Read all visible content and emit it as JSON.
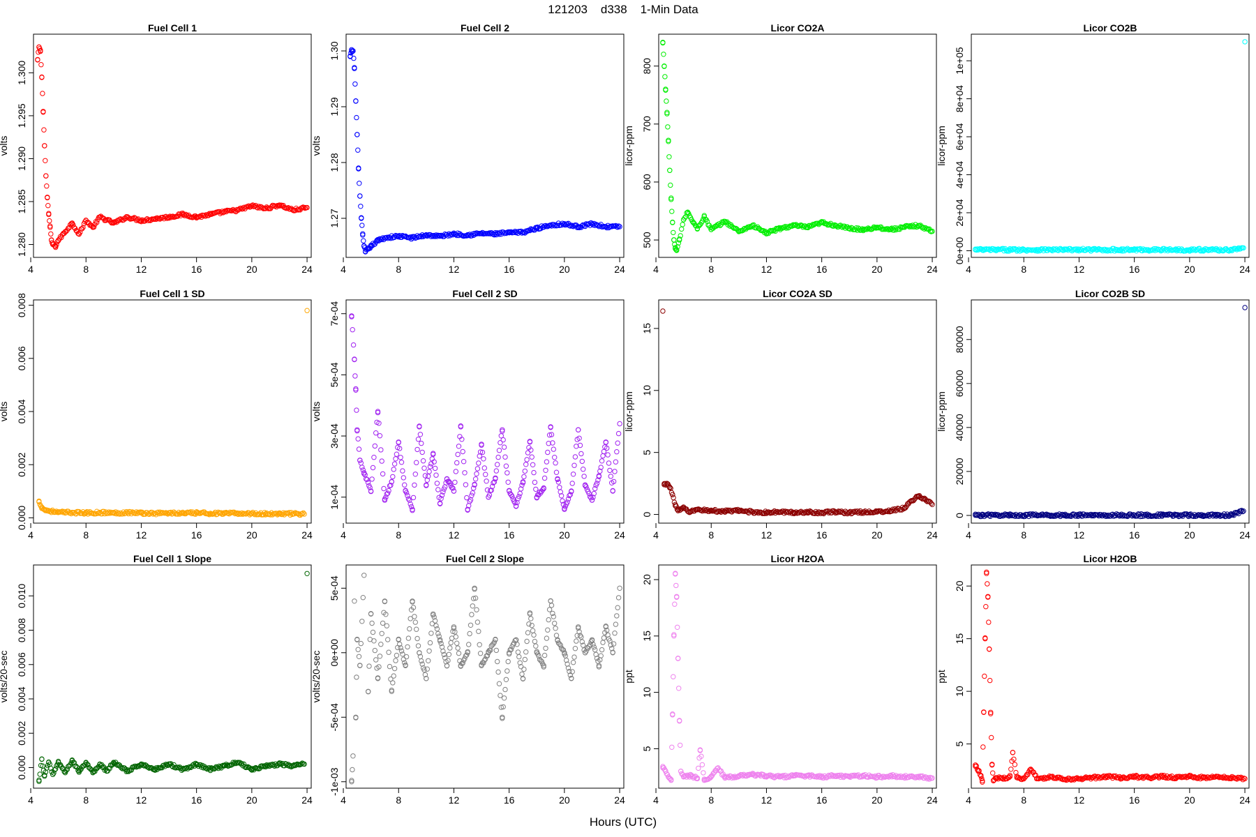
{
  "page": {
    "title": "121203    d338    1-Min Data",
    "xlabel": "Hours (UTC)"
  },
  "chart_data": [
    {
      "type": "scatter",
      "title": "Fuel Cell 1",
      "ylabel": "volts",
      "color": "#ff0000",
      "xlim": [
        4.2,
        24.3
      ],
      "ylim": [
        1.2785,
        1.3045
      ],
      "xticks": [
        4,
        8,
        12,
        16,
        20,
        24
      ],
      "yticks": [
        1.28,
        1.285,
        1.29,
        1.295,
        1.3
      ],
      "ytick_labels": [
        "1.280",
        "1.285",
        "1.290",
        "1.295",
        "1.300"
      ],
      "x": [
        4.5,
        4.6,
        4.7,
        4.8,
        4.9,
        5.0,
        5.1,
        5.2,
        5.3,
        5.4,
        5.5,
        5.6,
        5.8,
        6.0,
        6.5,
        7.0,
        7.5,
        8.0,
        8.5,
        9.0,
        10.0,
        11.0,
        12.0,
        13.0,
        14.0,
        15.0,
        16.0,
        17.0,
        18.0,
        19.0,
        20.0,
        21.0,
        22.0,
        23.0,
        24.0
      ],
      "y": [
        1.3015,
        1.303,
        1.3025,
        1.2995,
        1.2955,
        1.2915,
        1.288,
        1.2855,
        1.2835,
        1.282,
        1.2805,
        1.28,
        1.2798,
        1.2805,
        1.2815,
        1.2825,
        1.2812,
        1.2828,
        1.282,
        1.2832,
        1.2825,
        1.2832,
        1.2828,
        1.283,
        1.2832,
        1.2835,
        1.2832,
        1.2835,
        1.2838,
        1.284,
        1.2845,
        1.2842,
        1.2846,
        1.284,
        1.2843
      ]
    },
    {
      "type": "scatter",
      "title": "Fuel Cell 2",
      "ylabel": "volts",
      "color": "#0000ff",
      "xlim": [
        4.2,
        24.3
      ],
      "ylim": [
        1.263,
        1.303
      ],
      "xticks": [
        4,
        8,
        12,
        16,
        20,
        24
      ],
      "yticks": [
        1.27,
        1.28,
        1.29,
        1.3
      ],
      "ytick_labels": [
        "1.27",
        "1.28",
        "1.29",
        "1.30"
      ],
      "x": [
        4.5,
        4.6,
        4.7,
        4.8,
        4.9,
        5.0,
        5.1,
        5.2,
        5.3,
        5.4,
        5.5,
        5.6,
        5.8,
        6.0,
        6.5,
        7.0,
        8.0,
        9.0,
        10.0,
        11.0,
        12.0,
        13.0,
        14.0,
        15.0,
        16.0,
        17.0,
        18.0,
        19.0,
        20.0,
        21.0,
        22.0,
        23.0,
        24.0
      ],
      "y": [
        1.299,
        1.3,
        1.3,
        1.297,
        1.291,
        1.285,
        1.279,
        1.274,
        1.27,
        1.267,
        1.265,
        1.264,
        1.2645,
        1.265,
        1.266,
        1.2665,
        1.2668,
        1.2665,
        1.267,
        1.2668,
        1.2672,
        1.267,
        1.2673,
        1.2672,
        1.2674,
        1.2675,
        1.2682,
        1.2688,
        1.269,
        1.2685,
        1.269,
        1.2685,
        1.2685
      ]
    },
    {
      "type": "scatter",
      "title": "Licor CO2A",
      "ylabel": "licor-ppm",
      "color": "#00ee00",
      "xlim": [
        4.2,
        24.3
      ],
      "ylim": [
        470,
        855
      ],
      "xticks": [
        4,
        8,
        12,
        16,
        20,
        24
      ],
      "yticks": [
        500,
        600,
        700,
        800
      ],
      "ytick_labels": [
        "500",
        "600",
        "700",
        "800"
      ],
      "x": [
        4.5,
        4.6,
        4.7,
        4.8,
        4.9,
        5.0,
        5.1,
        5.2,
        5.3,
        5.4,
        5.5,
        5.7,
        6.0,
        6.3,
        6.7,
        7.0,
        7.5,
        8.0,
        9.0,
        10.0,
        11.0,
        12.0,
        13.0,
        14.0,
        15.0,
        16.0,
        17.0,
        18.0,
        19.0,
        20.0,
        21.0,
        22.0,
        23.0,
        24.0
      ],
      "y": [
        840,
        800,
        760,
        720,
        670,
        620,
        570,
        530,
        500,
        485,
        482,
        500,
        535,
        548,
        530,
        520,
        540,
        518,
        532,
        515,
        525,
        512,
        520,
        525,
        522,
        530,
        525,
        520,
        518,
        522,
        518,
        522,
        525,
        515
      ]
    },
    {
      "type": "scatter",
      "title": "Licor CO2B",
      "ylabel": "licor-ppm",
      "color": "#00ffff",
      "xlim": [
        4.2,
        24.3
      ],
      "ylim": [
        -3500,
        114000
      ],
      "xticks": [
        4,
        8,
        12,
        16,
        20,
        24
      ],
      "yticks": [
        0,
        20000,
        40000,
        60000,
        80000,
        100000
      ],
      "ytick_labels": [
        "0e+00",
        "2e+04",
        "4e+04",
        "6e+04",
        "8e+04",
        "1e+05"
      ],
      "x": [
        4.5,
        5,
        6,
        7,
        8,
        9,
        10,
        11,
        12,
        13,
        14,
        15,
        16,
        17,
        18,
        19,
        20,
        21,
        22,
        23,
        23.9,
        24.0
      ],
      "y": [
        500,
        500,
        500,
        500,
        500,
        500,
        500,
        500,
        500,
        500,
        500,
        500,
        500,
        500,
        500,
        500,
        500,
        500,
        500,
        500,
        1500,
        110000
      ]
    },
    {
      "type": "scatter",
      "title": "Fuel Cell 1 SD",
      "ylabel": "volts",
      "color": "#ffa500",
      "xlim": [
        4.2,
        24.3
      ],
      "ylim": [
        -0.0002,
        0.0082
      ],
      "xticks": [
        4,
        8,
        12,
        16,
        20,
        24
      ],
      "yticks": [
        0.0,
        0.002,
        0.004,
        0.006,
        0.008
      ],
      "ytick_labels": [
        "0.000",
        "0.002",
        "0.004",
        "0.006",
        "0.008"
      ],
      "x": [
        4.6,
        4.8,
        5.0,
        5.5,
        6,
        7,
        8,
        9,
        10,
        11,
        12,
        13,
        14,
        15,
        16,
        17,
        18,
        19,
        20,
        21,
        22,
        23,
        23.8,
        24.0
      ],
      "y": [
        0.0006,
        0.0004,
        0.0003,
        0.00025,
        0.0002,
        0.0002,
        0.00018,
        0.0002,
        0.00018,
        0.0002,
        0.00018,
        0.00017,
        0.00018,
        0.00017,
        0.00018,
        0.00017,
        0.00016,
        0.00017,
        0.00016,
        0.00015,
        0.00016,
        0.00015,
        0.00014,
        0.0078
      ]
    },
    {
      "type": "scatter",
      "title": "Fuel Cell 2 SD",
      "ylabel": "volts",
      "color": "#a020f0",
      "xlim": [
        4.2,
        24.3
      ],
      "ylim": [
        1.5e-05,
        0.000745
      ],
      "xticks": [
        4,
        8,
        12,
        16,
        20,
        24
      ],
      "yticks": [
        0.0001,
        0.0003,
        0.0005,
        0.0007
      ],
      "ytick_labels": [
        "1e-04",
        "3e-04",
        "5e-04",
        "7e-04"
      ],
      "x": [
        4.6,
        4.8,
        4.9,
        5.0,
        5.2,
        5.5,
        6.0,
        6.5,
        7.0,
        7.5,
        8.0,
        8.5,
        9.0,
        9.5,
        10.0,
        10.5,
        11.0,
        11.5,
        12.0,
        12.5,
        13.0,
        13.5,
        14.0,
        14.5,
        15.0,
        15.5,
        16.0,
        16.5,
        17.0,
        17.5,
        18.0,
        18.5,
        19.0,
        19.5,
        20.0,
        20.5,
        21.0,
        21.5,
        22.0,
        22.5,
        23.0,
        23.5,
        24.0
      ],
      "y": [
        0.00069,
        0.00055,
        0.00045,
        0.00032,
        0.00022,
        0.00018,
        0.00012,
        0.00038,
        9e-05,
        0.00015,
        0.00028,
        0.00012,
        6e-05,
        0.00033,
        0.00014,
        0.00024,
        8e-05,
        0.00016,
        0.00012,
        0.00033,
        6e-05,
        0.00014,
        0.00027,
        0.0001,
        0.00016,
        0.00032,
        0.00012,
        7e-05,
        0.00015,
        0.00028,
        0.0001,
        0.00013,
        0.00033,
        0.00016,
        6e-05,
        0.00012,
        0.00032,
        0.00014,
        9e-05,
        0.00017,
        0.00028,
        0.00012,
        0.00034
      ]
    },
    {
      "type": "scatter",
      "title": "Licor CO2A SD",
      "ylabel": "licor-ppm",
      "color": "#8b0000",
      "xlim": [
        4.2,
        24.3
      ],
      "ylim": [
        -0.7,
        17.3
      ],
      "xticks": [
        4,
        8,
        12,
        16,
        20,
        24
      ],
      "yticks": [
        0,
        5,
        10,
        15
      ],
      "ytick_labels": [
        "0",
        "5",
        "10",
        "15"
      ],
      "x": [
        4.5,
        4.6,
        4.8,
        5.0,
        5.2,
        5.4,
        5.6,
        6.0,
        6.5,
        7.0,
        8.0,
        9.0,
        10.0,
        11.0,
        12.0,
        13.0,
        14.0,
        15.0,
        16.0,
        17.0,
        18.0,
        19.0,
        20.0,
        21.0,
        22.0,
        22.5,
        23.0,
        23.5,
        24.0
      ],
      "y": [
        16.4,
        2.4,
        2.5,
        2.2,
        1.6,
        0.8,
        0.3,
        0.5,
        0.2,
        0.4,
        0.3,
        0.25,
        0.3,
        0.2,
        0.15,
        0.2,
        0.15,
        0.2,
        0.15,
        0.2,
        0.15,
        0.2,
        0.2,
        0.3,
        0.5,
        1.1,
        1.5,
        1.2,
        0.8
      ]
    },
    {
      "type": "scatter",
      "title": "Licor CO2B SD",
      "ylabel": "licor-ppm",
      "color": "#000080",
      "xlim": [
        4.2,
        24.3
      ],
      "ylim": [
        -3500,
        98000
      ],
      "xticks": [
        4,
        8,
        12,
        16,
        20,
        24
      ],
      "yticks": [
        0,
        20000,
        40000,
        60000,
        80000
      ],
      "ytick_labels": [
        "0",
        "20000",
        "40000",
        "60000",
        "80000"
      ],
      "x": [
        4.5,
        5,
        6,
        7,
        8,
        9,
        10,
        11,
        12,
        13,
        14,
        15,
        16,
        17,
        18,
        19,
        20,
        21,
        22,
        23,
        23.9,
        24.0
      ],
      "y": [
        100,
        100,
        100,
        100,
        100,
        100,
        100,
        100,
        100,
        100,
        100,
        100,
        100,
        100,
        100,
        100,
        100,
        100,
        100,
        100,
        2000,
        94500
      ]
    },
    {
      "type": "scatter",
      "title": "Fuel Cell 1 Slope",
      "ylabel": "volts/20-sec",
      "color": "#006400",
      "xlim": [
        4.2,
        24.3
      ],
      "ylim": [
        -0.0012,
        0.0118
      ],
      "xticks": [
        4,
        8,
        12,
        16,
        20,
        24
      ],
      "yticks": [
        0.0,
        0.002,
        0.004,
        0.006,
        0.008,
        0.01
      ],
      "ytick_labels": [
        "0.000",
        "0.002",
        "0.004",
        "0.006",
        "0.008",
        "0.010"
      ],
      "x": [
        4.6,
        4.8,
        5.0,
        5.3,
        5.6,
        6.0,
        6.5,
        7.0,
        7.5,
        8.0,
        8.5,
        9.0,
        9.5,
        10.0,
        11.0,
        12.0,
        13.0,
        14.0,
        15.0,
        16.0,
        17.0,
        18.0,
        19.0,
        20.0,
        21.0,
        22.0,
        23.0,
        23.8,
        24.0
      ],
      "y": [
        -0.0008,
        0.0005,
        -0.0005,
        0.0003,
        -0.0004,
        0.0003,
        -0.0003,
        0.0004,
        -0.0002,
        0.0003,
        -0.0003,
        0.0002,
        -0.0002,
        0.0003,
        -0.0002,
        0.0002,
        -0.0001,
        0.0002,
        -0.0001,
        0.0002,
        -0.0001,
        0.0001,
        0.0003,
        -0.0001,
        0.0001,
        0.0002,
        0.0001,
        0.0002,
        0.0113
      ]
    },
    {
      "type": "scatter",
      "title": "Fuel Cell 2 Slope",
      "ylabel": "volts/20-sec",
      "color": "#808080",
      "xlim": [
        4.2,
        24.3
      ],
      "ylim": [
        -0.00105,
        0.00068
      ],
      "xticks": [
        4,
        8,
        12,
        16,
        20,
        24
      ],
      "yticks": [
        -0.001,
        -0.0005,
        0.0,
        0.0005
      ],
      "ytick_labels": [
        "-1e-03",
        "-5e-04",
        "0e+00",
        "5e-04"
      ],
      "x": [
        4.6,
        4.7,
        4.8,
        4.9,
        5.0,
        5.2,
        5.5,
        5.8,
        6.0,
        6.5,
        7.0,
        7.5,
        8.0,
        8.5,
        9.0,
        9.5,
        10.0,
        10.5,
        11.0,
        11.5,
        12.0,
        12.5,
        13.0,
        13.5,
        14.0,
        14.5,
        15.0,
        15.5,
        16.0,
        16.5,
        17.0,
        17.5,
        18.0,
        18.5,
        19.0,
        19.5,
        20.0,
        20.5,
        21.0,
        21.5,
        22.0,
        22.5,
        23.0,
        23.5,
        24.0
      ],
      "y": [
        -0.001,
        -0.0008,
        0.0004,
        -0.0005,
        0.0001,
        -0.0001,
        0.0006,
        -0.0003,
        0.0003,
        -0.0002,
        0.0004,
        -0.0003,
        0.0001,
        -0.0001,
        0.0004,
        0.0,
        -0.0002,
        0.0003,
        0.0001,
        -0.0001,
        0.0002,
        -0.0001,
        0.0,
        0.0005,
        -0.0001,
        0.0,
        0.0001,
        -0.0005,
        0.0,
        0.0001,
        -0.0002,
        0.0003,
        0.0,
        -0.0001,
        0.0004,
        0.0001,
        0.0,
        -0.0002,
        0.0002,
        0.0,
        0.0001,
        -0.0001,
        0.0002,
        0.0,
        0.0005
      ]
    },
    {
      "type": "scatter",
      "title": "Licor H2OA",
      "ylabel": "ppt",
      "color": "#ee82ee",
      "xlim": [
        4.2,
        24.3
      ],
      "ylim": [
        1.5,
        21.3
      ],
      "xticks": [
        4,
        8,
        12,
        16,
        20,
        24
      ],
      "yticks": [
        5,
        10,
        15,
        20
      ],
      "ytick_labels": [
        "5",
        "10",
        "15",
        "20"
      ],
      "x": [
        4.5,
        4.7,
        4.9,
        5.1,
        5.2,
        5.3,
        5.4,
        5.5,
        5.6,
        5.7,
        5.8,
        6.0,
        6.5,
        7.0,
        7.2,
        7.5,
        8.0,
        8.5,
        9.0,
        10.0,
        11.0,
        12.0,
        13.0,
        14.0,
        15.0,
        16.0,
        17.0,
        18.0,
        19.0,
        20.0,
        21.0,
        22.0,
        23.0,
        24.0
      ],
      "y": [
        3.3,
        3.0,
        2.5,
        2.2,
        8.0,
        15.0,
        20.5,
        18.5,
        13.0,
        7.5,
        3.0,
        2.5,
        2.6,
        2.4,
        4.9,
        2.3,
        2.5,
        3.3,
        2.4,
        2.6,
        2.7,
        2.6,
        2.5,
        2.6,
        2.6,
        2.5,
        2.6,
        2.5,
        2.6,
        2.5,
        2.6,
        2.5,
        2.5,
        2.4
      ]
    },
    {
      "type": "scatter",
      "title": "Licor H2OB",
      "ylabel": "ppt",
      "color": "#ff0000",
      "xlim": [
        4.2,
        24.3
      ],
      "ylim": [
        0.8,
        22.0
      ],
      "xticks": [
        4,
        8,
        12,
        16,
        20,
        24
      ],
      "yticks": [
        5,
        10,
        15,
        20
      ],
      "ytick_labels": [
        "5",
        "10",
        "15",
        "20"
      ],
      "x": [
        4.5,
        4.7,
        4.9,
        5.0,
        5.1,
        5.2,
        5.3,
        5.4,
        5.5,
        5.6,
        5.7,
        5.8,
        6.0,
        6.5,
        7.0,
        7.2,
        7.5,
        8.0,
        8.5,
        9.0,
        10.0,
        11.0,
        12.0,
        13.0,
        14.0,
        15.0,
        16.0,
        17.0,
        18.0,
        19.0,
        20.0,
        21.0,
        22.0,
        23.0,
        24.0
      ],
      "y": [
        3.0,
        2.5,
        2.0,
        1.5,
        8.0,
        15.0,
        21.2,
        19.0,
        14.0,
        8.0,
        3.0,
        1.5,
        1.8,
        1.7,
        1.9,
        4.2,
        1.8,
        1.7,
        2.6,
        1.7,
        1.9,
        1.6,
        1.7,
        1.8,
        1.9,
        1.8,
        1.9,
        1.8,
        1.9,
        1.8,
        1.9,
        1.8,
        1.9,
        1.8,
        1.7
      ]
    }
  ]
}
